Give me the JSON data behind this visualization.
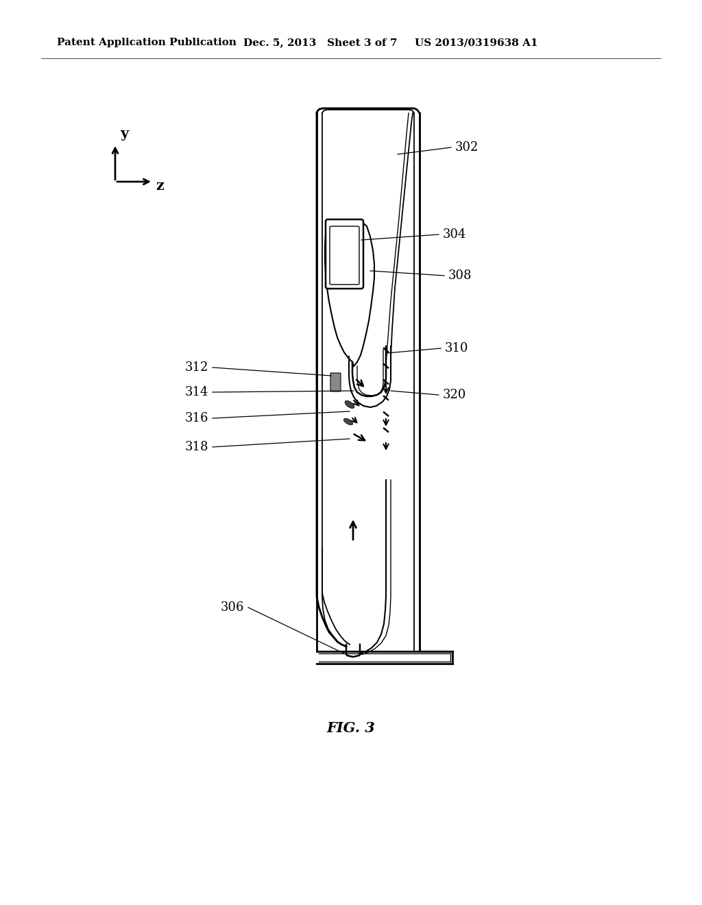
{
  "title_left": "Patent Application Publication",
  "title_mid": "Dec. 5, 2013   Sheet 3 of 7",
  "title_right": "US 2013/0319638 A1",
  "fig_label": "FIG. 3",
  "background_color": "#ffffff",
  "line_color": "#000000",
  "label_fontsize": 13,
  "header_fontsize": 11,
  "axis_label_fontsize": 15,
  "fig_label_fontsize": 15
}
